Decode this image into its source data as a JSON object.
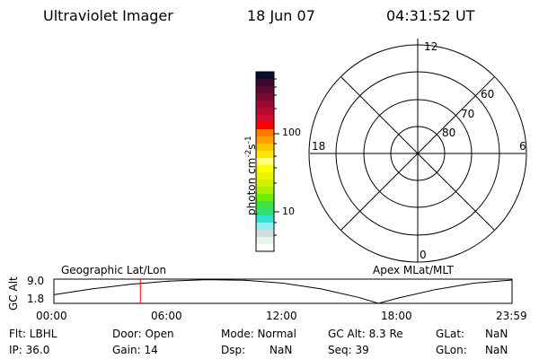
{
  "header": {
    "title": "Ultraviolet Imager",
    "date": "18 Jun 07",
    "time": "04:31:52 UT"
  },
  "colorbar": {
    "label": "photon cm^-2 s^-1",
    "label_main": "photon cm",
    "label_exp1": "-2",
    "label_s": "s",
    "label_exp2": "-1",
    "tick_labels": [
      "100",
      "10"
    ],
    "colors": [
      "#0a0a30",
      "#3a0a2e",
      "#5a0a32",
      "#7a0a32",
      "#980a30",
      "#b80a32",
      "#d80a30",
      "#ff0000",
      "#ff7800",
      "#ffa000",
      "#ffc400",
      "#ffe400",
      "#ffff80",
      "#ffff00",
      "#eaf400",
      "#d4f000",
      "#aaf000",
      "#70f000",
      "#40e040",
      "#30e070",
      "#30e0d0",
      "#90f0f0",
      "#d0e0e0",
      "#e8f4ee",
      "#ffffff"
    ]
  },
  "polar": {
    "mlt_labels": {
      "top": "12",
      "right": "6",
      "bottom": "0",
      "left": "18"
    },
    "lat_labels": [
      "80",
      "70",
      "60"
    ]
  },
  "chart_data": {
    "type": "line",
    "ylabel": "GC Alt",
    "left_title": "Geographic Lat/Lon",
    "right_title": "Apex MLat/MLT",
    "x_tick_labels": [
      "00:00",
      "06:00",
      "12:00",
      "18:00",
      "23:59"
    ],
    "y_tick_labels": [
      "9.0",
      "1.8"
    ],
    "ylim": [
      1.0,
      9.4
    ],
    "x": [
      0,
      2,
      4,
      6,
      8,
      10,
      12,
      14,
      16,
      17,
      18,
      20,
      22,
      24
    ],
    "values": [
      4.0,
      6.0,
      7.6,
      8.7,
      9.2,
      9.0,
      8.0,
      6.0,
      3.0,
      1.0,
      2.8,
      5.8,
      8.0,
      9.1
    ],
    "current_time_hours": 4.53,
    "marker_color": "#ff0000"
  },
  "status": {
    "filter": "Flt: LBHL",
    "ip": "IP: 36.0",
    "door": "Door: Open",
    "gain": "Gain: 14",
    "mode": "Mode: Normal",
    "dsp_label": "Dsp:",
    "dsp_value": "NaN",
    "gc_alt": "GC Alt: 8.3 Re",
    "seq": "Seq: 39",
    "glat_label": "GLat:",
    "glat_value": "NaN",
    "glon_label": "GLon:",
    "glon_value": "NaN"
  }
}
